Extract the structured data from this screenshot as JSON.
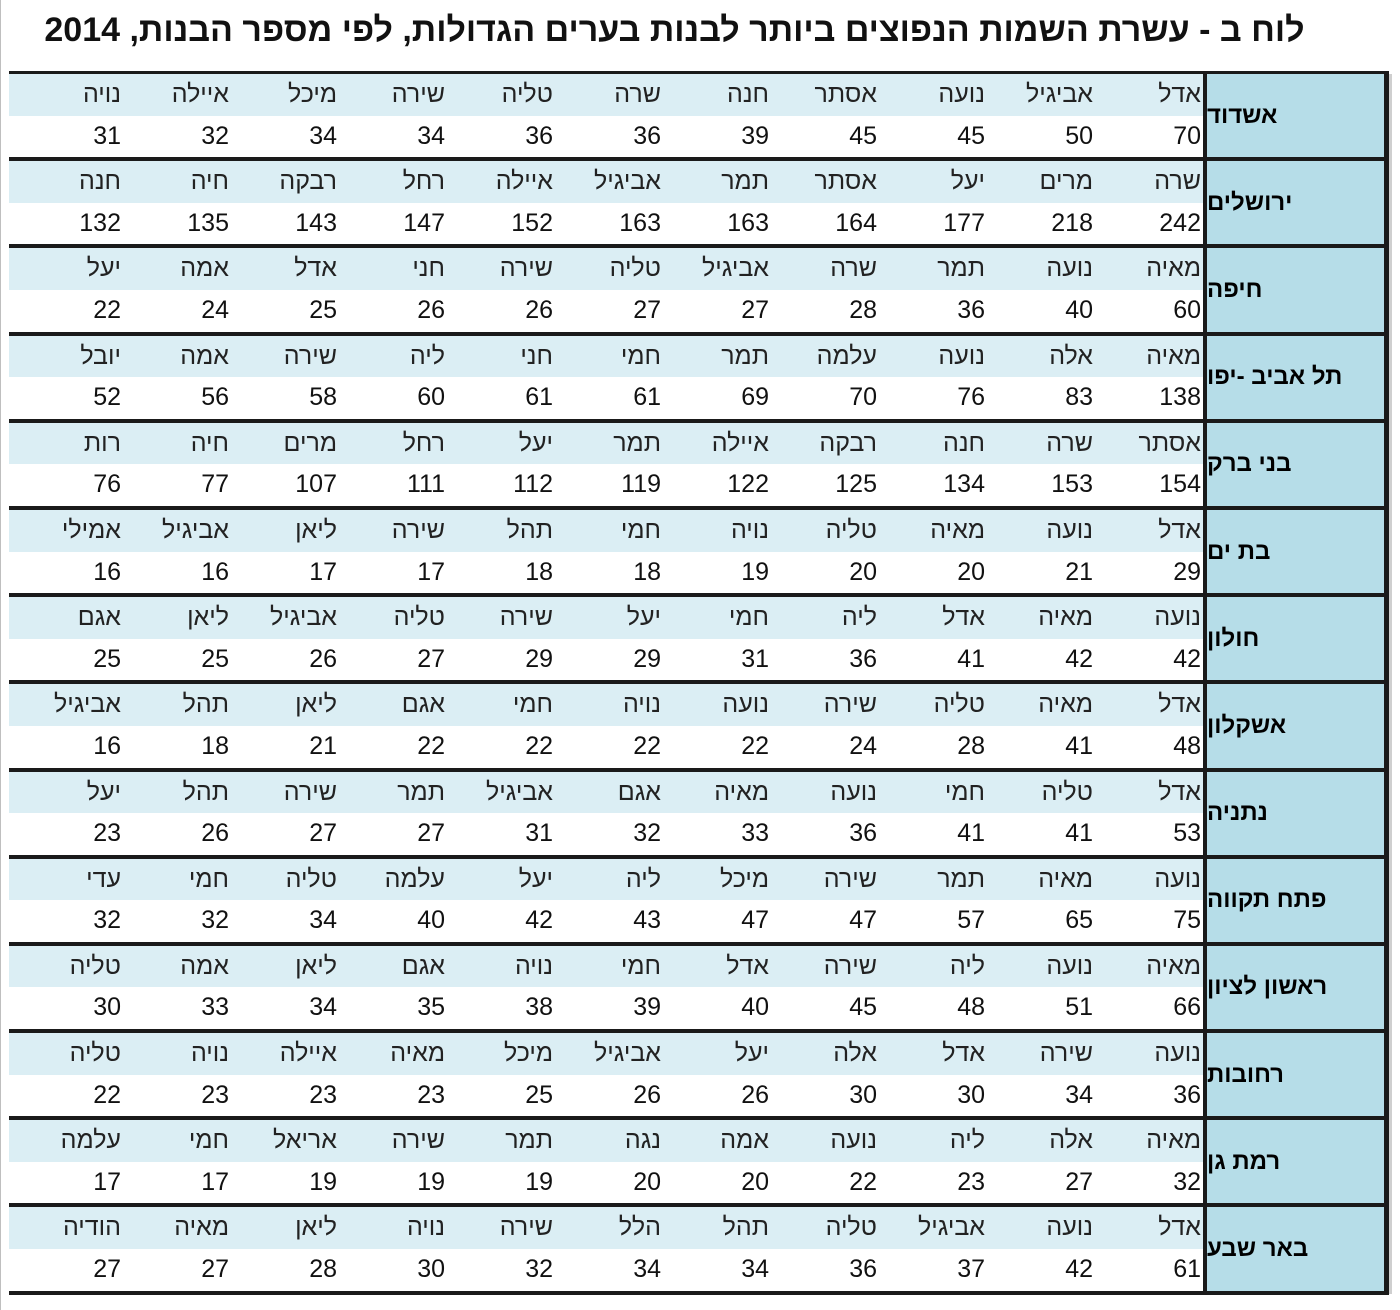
{
  "title": "לוח ב - עשרת השמות הנפוצים ביותר לבנות בערים הגדולות, לפי מספר הבנות, 2014",
  "rows": [
    {
      "city": "אשדוד",
      "names": [
        "אדל",
        "אביגיל",
        "נועה",
        "אסתר",
        "חנה",
        "שרה",
        "טליה",
        "שירה",
        "מיכל",
        "איילה",
        "נויה"
      ],
      "counts": [
        "70",
        "50",
        "45",
        "45",
        "39",
        "36",
        "36",
        "34",
        "34",
        "32",
        "31"
      ]
    },
    {
      "city": "ירושלים",
      "names": [
        "שרה",
        "מרים",
        "יעל",
        "אסתר",
        "תמר",
        "אביגיל",
        "איילה",
        "רחל",
        "רבקה",
        "חיה",
        "חנה"
      ],
      "counts": [
        "242",
        "218",
        "177",
        "164",
        "163",
        "163",
        "152",
        "147",
        "143",
        "135",
        "132"
      ]
    },
    {
      "city": "חיפה",
      "names": [
        "מאיה",
        "נועה",
        "תמר",
        "שרה",
        "אביגיל",
        "טליה",
        "שירה",
        "חני",
        "אדל",
        "אמה",
        "יעל"
      ],
      "counts": [
        "60",
        "40",
        "36",
        "28",
        "27",
        "27",
        "26",
        "26",
        "25",
        "24",
        "22"
      ]
    },
    {
      "city": "תל אביב -יפו",
      "names": [
        "מאיה",
        "אלה",
        "נועה",
        "עלמה",
        "תמר",
        "חמי",
        "חני",
        "ליה",
        "שירה",
        "אמה",
        "יובל"
      ],
      "counts": [
        "138",
        "83",
        "76",
        "70",
        "69",
        "61",
        "61",
        "60",
        "58",
        "56",
        "52"
      ]
    },
    {
      "city": "בני ברק",
      "names": [
        "אסתר",
        "שרה",
        "חנה",
        "רבקה",
        "איילה",
        "תמר",
        "יעל",
        "רחל",
        "מרים",
        "חיה",
        "רות"
      ],
      "counts": [
        "154",
        "153",
        "134",
        "125",
        "122",
        "119",
        "112",
        "111",
        "107",
        "77",
        "76"
      ]
    },
    {
      "city": "בת ים",
      "names": [
        "אדל",
        "נועה",
        "מאיה",
        "טליה",
        "נויה",
        "חמי",
        "תהל",
        "שירה",
        "ליאן",
        "אביגיל",
        "אמילי"
      ],
      "counts": [
        "29",
        "21",
        "20",
        "20",
        "19",
        "18",
        "18",
        "17",
        "17",
        "16",
        "16"
      ]
    },
    {
      "city": "חולון",
      "names": [
        "נועה",
        "מאיה",
        "אדל",
        "ליה",
        "חמי",
        "יעל",
        "שירה",
        "טליה",
        "אביגיל",
        "ליאן",
        "אגם"
      ],
      "counts": [
        "42",
        "42",
        "41",
        "36",
        "31",
        "29",
        "29",
        "27",
        "26",
        "25",
        "25"
      ]
    },
    {
      "city": "אשקלון",
      "names": [
        "אדל",
        "מאיה",
        "טליה",
        "שירה",
        "נועה",
        "נויה",
        "חמי",
        "אגם",
        "ליאן",
        "תהל",
        "אביגיל"
      ],
      "counts": [
        "48",
        "41",
        "28",
        "24",
        "22",
        "22",
        "22",
        "22",
        "21",
        "18",
        "16"
      ]
    },
    {
      "city": "נתניה",
      "names": [
        "אדל",
        "טליה",
        "חמי",
        "נועה",
        "מאיה",
        "אגם",
        "אביגיל",
        "תמר",
        "שירה",
        "תהל",
        "יעל"
      ],
      "counts": [
        "53",
        "41",
        "41",
        "36",
        "33",
        "32",
        "31",
        "27",
        "27",
        "26",
        "23"
      ]
    },
    {
      "city": "פתח תקווה",
      "names": [
        "נועה",
        "מאיה",
        "תמר",
        "שירה",
        "מיכל",
        "ליה",
        "יעל",
        "עלמה",
        "טליה",
        "חמי",
        "עדי"
      ],
      "counts": [
        "75",
        "65",
        "57",
        "47",
        "47",
        "43",
        "42",
        "40",
        "34",
        "32",
        "32"
      ]
    },
    {
      "city": "ראשון לציון",
      "names": [
        "מאיה",
        "נועה",
        "ליה",
        "שירה",
        "אדל",
        "חמי",
        "נויה",
        "אגם",
        "ליאן",
        "אמה",
        "טליה"
      ],
      "counts": [
        "66",
        "51",
        "48",
        "45",
        "40",
        "39",
        "38",
        "35",
        "34",
        "33",
        "30"
      ]
    },
    {
      "city": "רחובות",
      "names": [
        "נועה",
        "שירה",
        "אדל",
        "אלה",
        "יעל",
        "אביגיל",
        "מיכל",
        "מאיה",
        "איילה",
        "נויה",
        "טליה"
      ],
      "counts": [
        "36",
        "34",
        "30",
        "30",
        "26",
        "26",
        "25",
        "23",
        "23",
        "23",
        "22"
      ]
    },
    {
      "city": "רמת גן",
      "names": [
        "מאיה",
        "אלה",
        "ליה",
        "נועה",
        "אמה",
        "נגה",
        "תמר",
        "שירה",
        "אריאל",
        "חמי",
        "עלמה"
      ],
      "counts": [
        "32",
        "27",
        "23",
        "22",
        "20",
        "20",
        "19",
        "19",
        "19",
        "17",
        "17"
      ]
    },
    {
      "city": "באר שבע",
      "names": [
        "אדל",
        "נועה",
        "אביגיל",
        "טליה",
        "תהל",
        "הלל",
        "שירה",
        "נויה",
        "ליאן",
        "מאיה",
        "הודיה"
      ],
      "counts": [
        "61",
        "42",
        "37",
        "36",
        "34",
        "34",
        "32",
        "30",
        "28",
        "27",
        "27"
      ]
    }
  ]
}
